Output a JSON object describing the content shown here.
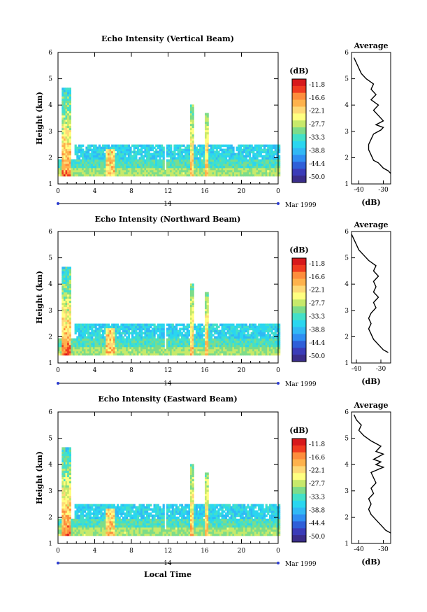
{
  "figure": {
    "xlabel": "Local Time",
    "date_label": "Mar 1999",
    "day_label": "14",
    "ylabel": "Height (km)",
    "profile_title": "Average",
    "profile_xlabel": "(dB)",
    "colorbar_label": "(dB)"
  },
  "chart_data": [
    {
      "type": "heatmap",
      "title": "Echo Intensity (Vertical Beam)",
      "ylabel": "Height (km)",
      "x_ticks": [
        "0",
        "4",
        "8",
        "12",
        "16",
        "20",
        "0"
      ],
      "x_range": [
        0,
        24
      ],
      "y_ticks": [
        "1",
        "2",
        "3",
        "4",
        "5",
        "6"
      ],
      "y_range": [
        1,
        6
      ],
      "colorbar": {
        "label": "(dB)",
        "ticks": [
          "-11.8",
          "-16.6",
          "-22.1",
          "-27.7",
          "-33.3",
          "-38.8",
          "-44.4",
          "-50.0"
        ],
        "range": [
          -50.0,
          -11.8
        ]
      },
      "profile": {
        "title": "Average",
        "xlabel": "(dB)",
        "x_ticks": [
          "-40",
          "-30"
        ],
        "x_range": [
          -43,
          -27
        ],
        "y_range": [
          1,
          6
        ],
        "points": [
          [
            -26,
            1.4
          ],
          [
            -28,
            1.5
          ],
          [
            -30,
            1.6
          ],
          [
            -32,
            1.8
          ],
          [
            -34,
            1.9
          ],
          [
            -35,
            2.1
          ],
          [
            -36,
            2.3
          ],
          [
            -36,
            2.5
          ],
          [
            -35,
            2.7
          ],
          [
            -34,
            2.9
          ],
          [
            -31,
            3.05
          ],
          [
            -30,
            3.15
          ],
          [
            -33,
            3.25
          ],
          [
            -30,
            3.4
          ],
          [
            -32,
            3.6
          ],
          [
            -34,
            3.8
          ],
          [
            -32,
            4.0
          ],
          [
            -35,
            4.2
          ],
          [
            -33,
            4.4
          ],
          [
            -35,
            4.6
          ],
          [
            -34,
            4.8
          ],
          [
            -37,
            5.0
          ],
          [
            -39,
            5.2
          ],
          [
            -40,
            5.4
          ],
          [
            -41,
            5.6
          ],
          [
            -42,
            5.8
          ]
        ]
      }
    },
    {
      "type": "heatmap",
      "title": "Echo Intensity (Northward Beam)",
      "ylabel": "Height (km)",
      "x_ticks": [
        "0",
        "4",
        "8",
        "12",
        "16",
        "20",
        "0"
      ],
      "x_range": [
        0,
        24
      ],
      "y_ticks": [
        "1",
        "2",
        "3",
        "4",
        "5",
        "6"
      ],
      "y_range": [
        1,
        6
      ],
      "colorbar": {
        "label": "(dB)",
        "ticks": [
          "-11.8",
          "-16.6",
          "-22.1",
          "-27.7",
          "-33.3",
          "-38.8",
          "-44.4",
          "-50.0"
        ],
        "range": [
          -50.0,
          -11.8
        ]
      },
      "profile": {
        "title": "Average",
        "xlabel": "(dB)",
        "x_ticks": [
          "-40",
          "-30"
        ],
        "x_range": [
          -42,
          -26
        ],
        "y_range": [
          1,
          6
        ],
        "points": [
          [
            -27,
            1.4
          ],
          [
            -29,
            1.5
          ],
          [
            -31,
            1.7
          ],
          [
            -33,
            1.9
          ],
          [
            -34,
            2.1
          ],
          [
            -35,
            2.3
          ],
          [
            -34,
            2.5
          ],
          [
            -35,
            2.7
          ],
          [
            -34,
            2.9
          ],
          [
            -32,
            3.1
          ],
          [
            -33,
            3.3
          ],
          [
            -31,
            3.5
          ],
          [
            -33,
            3.7
          ],
          [
            -32,
            3.9
          ],
          [
            -33,
            4.1
          ],
          [
            -31,
            4.3
          ],
          [
            -33,
            4.5
          ],
          [
            -32,
            4.7
          ],
          [
            -35,
            4.9
          ],
          [
            -37,
            5.1
          ],
          [
            -39,
            5.3
          ],
          [
            -40,
            5.5
          ],
          [
            -41,
            5.7
          ],
          [
            -42,
            5.9
          ]
        ]
      }
    },
    {
      "type": "heatmap",
      "title": "Echo Intensity (Eastward Beam)",
      "ylabel": "Height (km)",
      "x_ticks": [
        "0",
        "4",
        "8",
        "12",
        "16",
        "20",
        "0"
      ],
      "x_range": [
        0,
        24
      ],
      "y_ticks": [
        "1",
        "2",
        "3",
        "4",
        "5",
        "6"
      ],
      "y_range": [
        1,
        6
      ],
      "colorbar": {
        "label": "(dB)",
        "ticks": [
          "-11.8",
          "-16.6",
          "-22.1",
          "-27.7",
          "-33.3",
          "-38.8",
          "-44.4",
          "-50.0"
        ],
        "range": [
          -50.0,
          -11.8
        ]
      },
      "profile": {
        "title": "Average",
        "xlabel": "(dB)",
        "x_ticks": [
          "-40",
          "-30"
        ],
        "x_range": [
          -43,
          -27
        ],
        "y_range": [
          1,
          6
        ],
        "points": [
          [
            -27,
            1.4
          ],
          [
            -29,
            1.5
          ],
          [
            -31,
            1.7
          ],
          [
            -33,
            1.9
          ],
          [
            -35,
            2.1
          ],
          [
            -36,
            2.3
          ],
          [
            -35,
            2.5
          ],
          [
            -36,
            2.7
          ],
          [
            -34,
            2.9
          ],
          [
            -35,
            3.1
          ],
          [
            -33,
            3.3
          ],
          [
            -34,
            3.5
          ],
          [
            -35,
            3.7
          ],
          [
            -30,
            3.9
          ],
          [
            -33,
            4.0
          ],
          [
            -31,
            4.1
          ],
          [
            -34,
            4.2
          ],
          [
            -30,
            4.4
          ],
          [
            -33,
            4.5
          ],
          [
            -31,
            4.7
          ],
          [
            -35,
            4.9
          ],
          [
            -38,
            5.1
          ],
          [
            -40,
            5.3
          ],
          [
            -39,
            5.5
          ],
          [
            -41,
            5.7
          ],
          [
            -42,
            5.9
          ]
        ]
      }
    }
  ]
}
